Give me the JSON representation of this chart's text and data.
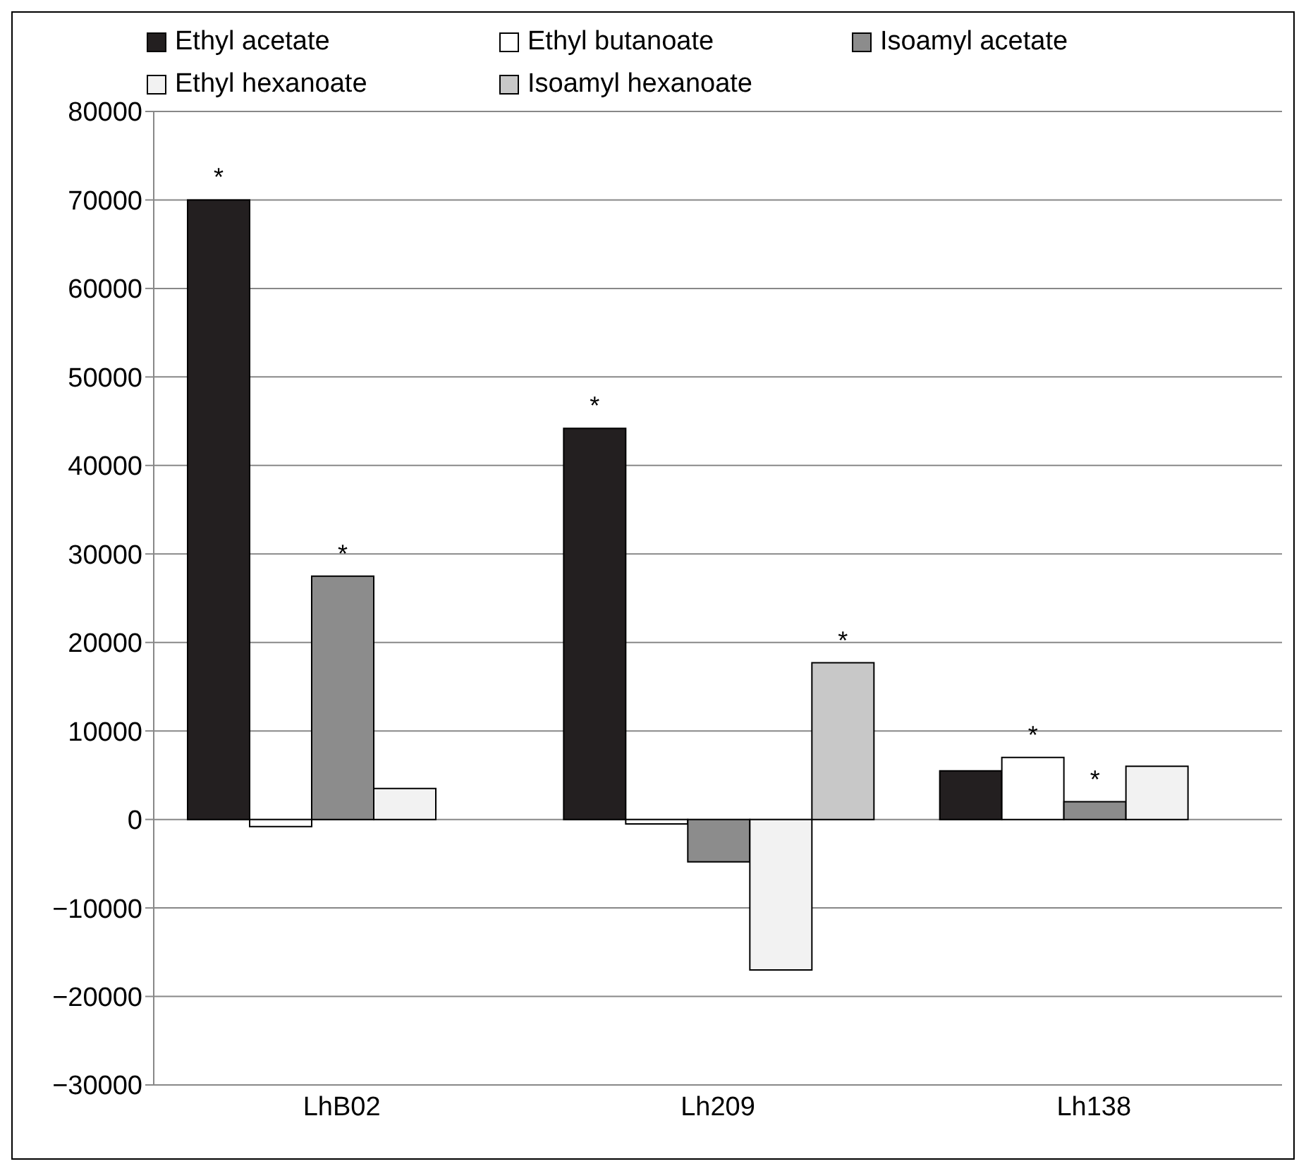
{
  "chart_data": {
    "type": "bar",
    "categories": [
      "LhB02",
      "Lh209",
      "Lh138"
    ],
    "series": [
      {
        "name": "Ethyl acetate",
        "color": "#231f20",
        "values": [
          70000,
          44200,
          5500
        ],
        "value_labels": [
          "*",
          "*",
          null
        ]
      },
      {
        "name": "Ethyl butanoate",
        "color": "#ffffff",
        "values": [
          -800,
          -500,
          7000
        ],
        "value_labels": [
          null,
          null,
          "*"
        ]
      },
      {
        "name": "Isoamyl acetate",
        "color": "#8c8c8c",
        "values": [
          27500,
          -4800,
          2000
        ],
        "value_labels": [
          "*",
          null,
          "*"
        ]
      },
      {
        "name": "Ethyl hexanoate",
        "color": "#f2f2f2",
        "values": [
          3500,
          -17000,
          6000
        ],
        "value_labels": [
          null,
          null,
          null
        ]
      },
      {
        "name": "Isoamyl hexanoate",
        "color": "#c8c8c8",
        "values": [
          null,
          17700,
          null
        ],
        "value_labels": [
          null,
          "*",
          null
        ]
      }
    ],
    "ylim": [
      -30000,
      80000
    ],
    "yticks": [
      -30000,
      -20000,
      -10000,
      0,
      10000,
      20000,
      30000,
      40000,
      50000,
      60000,
      70000,
      80000
    ],
    "grid": "y",
    "legend": "top"
  }
}
